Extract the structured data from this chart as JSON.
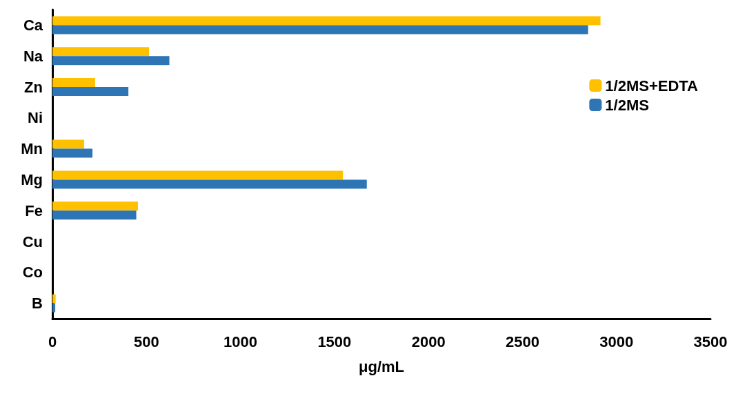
{
  "chart_data": {
    "type": "bar",
    "orientation": "horizontal",
    "xlabel": "μg/mL",
    "categories": [
      "Ca",
      "Na",
      "Zn",
      "Ni",
      "Mn",
      "Mg",
      "Fe",
      "Cu",
      "Co",
      "B"
    ],
    "series": [
      {
        "name": "1/2MS+EDTA",
        "color": "#ffc000",
        "values": [
          2915,
          514,
          227,
          0,
          169,
          1545,
          455,
          0,
          0,
          17
        ]
      },
      {
        "name": "1/2MS",
        "color": "#2e75b6",
        "values": [
          2849,
          622,
          404,
          0,
          213,
          1672,
          446,
          0,
          0,
          15
        ]
      }
    ],
    "xlim": [
      0,
      3500
    ],
    "xticks": [
      0,
      500,
      1000,
      1500,
      2000,
      2500,
      3000,
      3500
    ],
    "grid": false,
    "legend": "top right"
  }
}
